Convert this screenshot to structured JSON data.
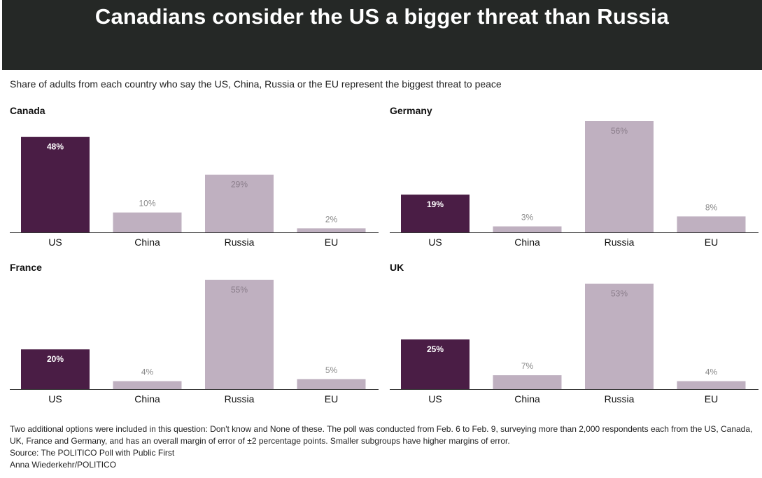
{
  "title": "Canadians consider the US a bigger threat than Russia",
  "subtitle": "Share of adults from each country who say the US, China, Russia or the EU represent the biggest threat to peace",
  "colors": {
    "highlight": "#4a1d45",
    "muted": "#bfb0c0",
    "header_bg": "#252826"
  },
  "chart_data": [
    {
      "type": "bar",
      "title": "Canada",
      "categories": [
        "US",
        "China",
        "Russia",
        "EU"
      ],
      "values": [
        48,
        10,
        29,
        2
      ],
      "labels": [
        "48%",
        "10%",
        "29%",
        "2%"
      ],
      "highlight_index": 0,
      "ylim": [
        0,
        56
      ]
    },
    {
      "type": "bar",
      "title": "Germany",
      "categories": [
        "US",
        "China",
        "Russia",
        "EU"
      ],
      "values": [
        19,
        3,
        56,
        8
      ],
      "labels": [
        "19%",
        "3%",
        "56%",
        "8%"
      ],
      "highlight_index": 0,
      "ylim": [
        0,
        56
      ]
    },
    {
      "type": "bar",
      "title": "France",
      "categories": [
        "US",
        "China",
        "Russia",
        "EU"
      ],
      "values": [
        20,
        4,
        55,
        5
      ],
      "labels": [
        "20%",
        "4%",
        "55%",
        "5%"
      ],
      "highlight_index": 0,
      "ylim": [
        0,
        56
      ]
    },
    {
      "type": "bar",
      "title": "UK",
      "categories": [
        "US",
        "China",
        "Russia",
        "EU"
      ],
      "values": [
        25,
        7,
        53,
        4
      ],
      "labels": [
        "25%",
        "7%",
        "53%",
        "4%"
      ],
      "highlight_index": 0,
      "ylim": [
        0,
        56
      ]
    }
  ],
  "notes": {
    "methodology": "Two additional options were included in this question: Don't know and None of these. The poll was conducted from Feb. 6 to Feb. 9, surveying more than 2,000 respondents each from the US, Canada, UK, France and Germany, and has an overall margin of error of ±2 percentage points. Smaller subgroups have higher margins of error.",
    "source": "Source: The POLITICO Poll with Public First",
    "credit": "Anna Wiederkehr/POLITICO"
  }
}
